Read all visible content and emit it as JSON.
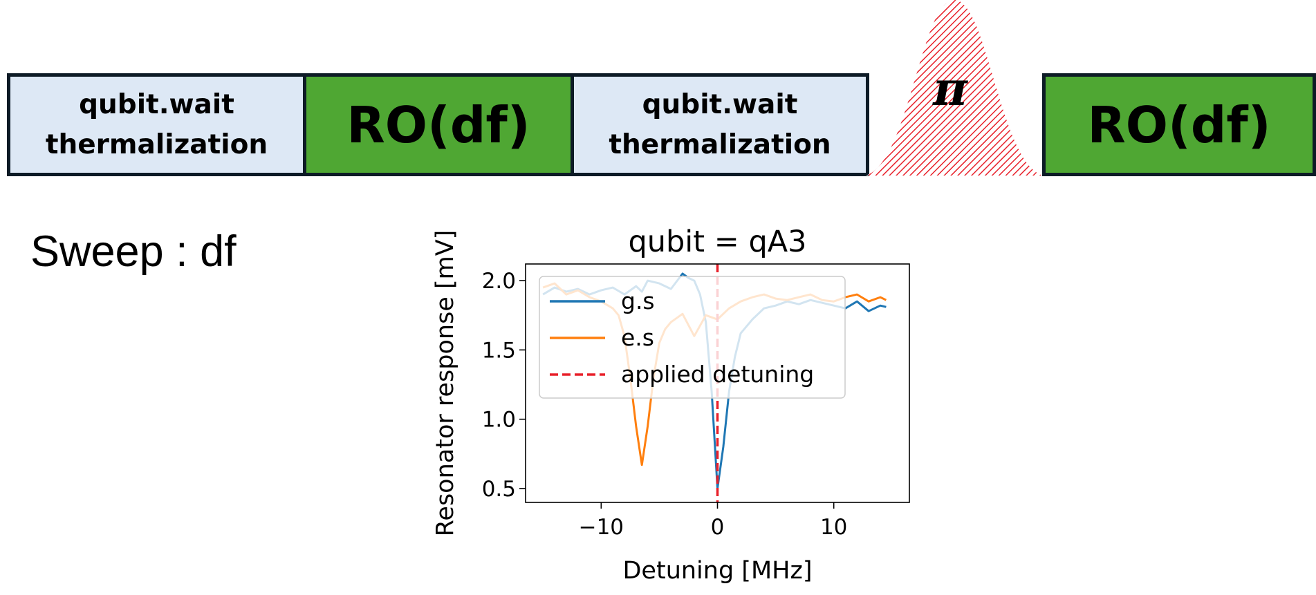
{
  "sequence": {
    "wait1": "qubit.wait\nthermalization",
    "ro1": "RO(df)",
    "wait2": "qubit.wait\nthermalization",
    "pi_label": "π",
    "ro2": "RO(df)"
  },
  "sweep_label": "Sweep : df",
  "colors": {
    "wait_fill": "#dde8f5",
    "ro_fill": "#4fa733",
    "pi_hatch": "#e8202a",
    "border": "#0d1b26"
  },
  "chart_data": {
    "type": "line",
    "title": "qubit = qA3",
    "xlabel": "Detuning [MHz]",
    "ylabel": "Resonator response [mV]",
    "xlim": [
      -16.5,
      16.5
    ],
    "ylim": [
      0.4,
      2.12
    ],
    "xticks": [
      -10,
      0,
      10
    ],
    "xtick_labels": [
      "−10",
      "0",
      "10"
    ],
    "yticks": [
      0.5,
      1.0,
      1.5,
      2.0
    ],
    "ytick_labels": [
      "0.5",
      "1.0",
      "1.5",
      "2.0"
    ],
    "grid": false,
    "legend": "upper-left",
    "series": [
      {
        "name": "g.s",
        "color": "#1f77b4",
        "x": [
          -15,
          -14,
          -13,
          -12,
          -11,
          -10,
          -9,
          -8,
          -7,
          -6.5,
          -6,
          -5,
          -4,
          -3,
          -2.5,
          -2,
          -1.5,
          -1,
          -0.5,
          0,
          0.5,
          1,
          1.5,
          2,
          3,
          4,
          5,
          6,
          7,
          8,
          9,
          10,
          11,
          12,
          13,
          14,
          14.5
        ],
        "values": [
          1.9,
          1.95,
          1.92,
          1.94,
          1.9,
          1.93,
          1.95,
          1.9,
          1.96,
          1.92,
          2.0,
          1.98,
          1.94,
          2.05,
          2.02,
          2.0,
          1.9,
          1.7,
          1.2,
          0.5,
          0.8,
          1.2,
          1.45,
          1.62,
          1.72,
          1.8,
          1.82,
          1.85,
          1.83,
          1.86,
          1.84,
          1.82,
          1.8,
          1.85,
          1.78,
          1.82,
          1.81
        ]
      },
      {
        "name": "e.s",
        "color": "#ff7f0e",
        "x": [
          -15,
          -14,
          -13,
          -12,
          -11,
          -10,
          -9,
          -8.5,
          -8,
          -7.5,
          -7,
          -6.5,
          -6,
          -5.5,
          -5,
          -4.5,
          -4,
          -3,
          -2,
          -1,
          0,
          1,
          2,
          3,
          4,
          5,
          6,
          7,
          8,
          9,
          10,
          11,
          12,
          13,
          14,
          14.5
        ],
        "values": [
          1.95,
          1.98,
          1.9,
          1.93,
          1.88,
          1.85,
          1.8,
          1.75,
          1.6,
          1.3,
          0.95,
          0.67,
          0.95,
          1.3,
          1.55,
          1.65,
          1.7,
          1.76,
          1.6,
          1.75,
          1.72,
          1.8,
          1.85,
          1.88,
          1.9,
          1.87,
          1.86,
          1.88,
          1.9,
          1.86,
          1.85,
          1.88,
          1.9,
          1.85,
          1.88,
          1.86
        ]
      }
    ],
    "vline": {
      "name": "applied detuning",
      "x": 0,
      "color": "#e8202a",
      "style": "dashed"
    }
  }
}
